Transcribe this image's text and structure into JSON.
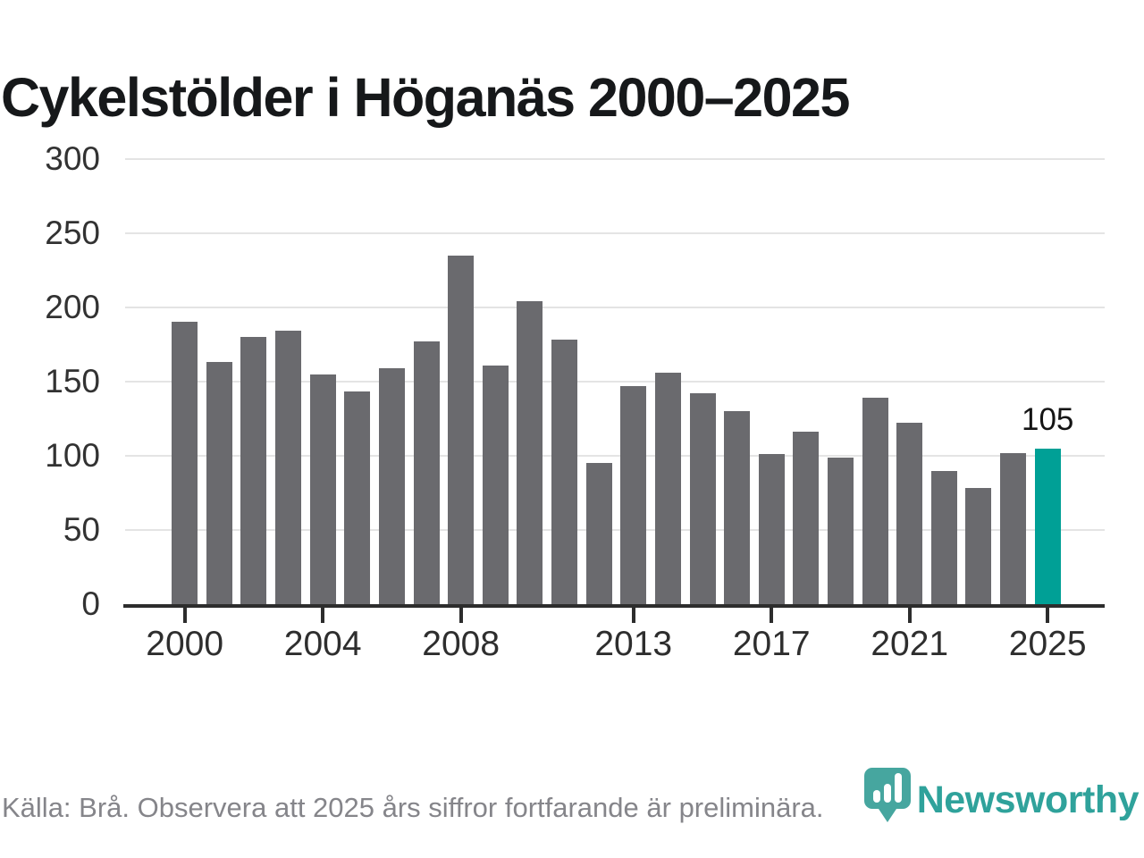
{
  "title": "Cykelstölder i Höganäs 2000–2025",
  "chart_data": {
    "type": "bar",
    "title": "Cykelstölder i Höganäs 2000–2025",
    "years": [
      2000,
      2001,
      2002,
      2003,
      2004,
      2005,
      2006,
      2007,
      2008,
      2009,
      2010,
      2011,
      2012,
      2013,
      2014,
      2015,
      2016,
      2017,
      2018,
      2019,
      2020,
      2021,
      2022,
      2023,
      2024,
      2025
    ],
    "values": [
      190,
      163,
      180,
      184,
      155,
      143,
      159,
      177,
      235,
      161,
      204,
      178,
      95,
      147,
      156,
      142,
      130,
      101,
      116,
      99,
      139,
      122,
      90,
      78,
      102,
      105
    ],
    "highlight_year": 2025,
    "highlight_value_label": "105",
    "yticks": [
      0,
      50,
      100,
      150,
      200,
      250,
      300
    ],
    "xticks": [
      2000,
      2004,
      2008,
      2013,
      2017,
      2021,
      2025
    ],
    "ylim": [
      0,
      300
    ],
    "grid": true,
    "legend": "none",
    "colors": {
      "bar": "#6A6A6E",
      "highlight": "#00A096",
      "gridline": "#E4E4E4",
      "axis": "#2D2D2D",
      "tick_label": "#2E2E2E"
    }
  },
  "footer": {
    "source": "Källa: Brå. Observera att 2025 års siffror fortfarande är preliminära.",
    "brand": "Newsworthy",
    "brand_color": "#2FA29B",
    "logo_color": "#46A69F"
  }
}
